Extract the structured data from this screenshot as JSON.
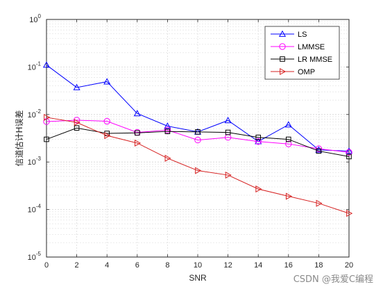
{
  "chart_data": {
    "type": "line",
    "title": "",
    "xlabel": "SNR",
    "ylabel": "信道估计H误差",
    "yscale": "log",
    "xlim": [
      0,
      20
    ],
    "ylim": [
      1e-05,
      1
    ],
    "grid": true,
    "legend_position": "top-right",
    "x_ticks": [
      "0",
      "2",
      "4",
      "6",
      "8",
      "10",
      "12",
      "14",
      "16",
      "18",
      "20"
    ],
    "y_ticks": [
      {
        "value": 1,
        "base": "10",
        "exp": "0"
      },
      {
        "value": 0.1,
        "base": "10",
        "exp": "-1"
      },
      {
        "value": 0.01,
        "base": "10",
        "exp": "-2"
      },
      {
        "value": 0.001,
        "base": "10",
        "exp": "-3"
      },
      {
        "value": 0.0001,
        "base": "10",
        "exp": "-4"
      },
      {
        "value": 1e-05,
        "base": "10",
        "exp": "-5"
      }
    ],
    "x": [
      0,
      2,
      4,
      6,
      8,
      10,
      12,
      14,
      16,
      18,
      20
    ],
    "series": [
      {
        "name": "LS",
        "color": "#0000ff",
        "marker": "triangle-up",
        "values": [
          0.11,
          0.037,
          0.049,
          0.0105,
          0.0057,
          0.0043,
          0.0075,
          0.0027,
          0.0061,
          0.0018,
          0.0017
        ]
      },
      {
        "name": "LMMSE",
        "color": "#ff00ff",
        "marker": "circle",
        "values": [
          0.0071,
          0.0076,
          0.0072,
          0.0042,
          0.0047,
          0.0029,
          0.0033,
          0.0027,
          0.0024,
          0.0019,
          0.0016
        ]
      },
      {
        "name": "LR MMSE",
        "color": "#000000",
        "marker": "square",
        "values": [
          0.003,
          0.0052,
          0.004,
          0.0041,
          0.0044,
          0.0043,
          0.0042,
          0.0033,
          0.003,
          0.0017,
          0.0013
        ]
      },
      {
        "name": "OMP",
        "color": "#d62020",
        "marker": "triangle-right",
        "values": [
          0.0087,
          0.0068,
          0.0036,
          0.0025,
          0.0012,
          0.00066,
          0.00053,
          0.00027,
          0.00019,
          0.000135,
          8.3e-05
        ]
      }
    ]
  },
  "watermark": "CSDN @我爱C编程"
}
